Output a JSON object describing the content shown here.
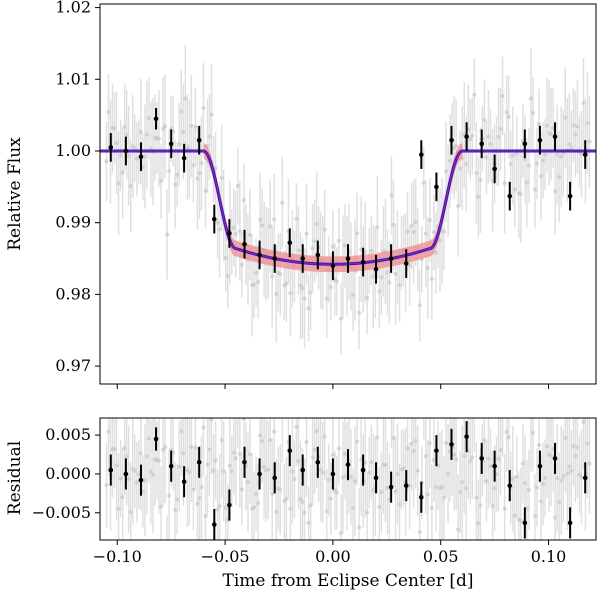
{
  "chart_data": [
    {
      "type": "scatter",
      "panel": "light-curve",
      "xlabel": "Time from Eclipse Center [d]",
      "ylabel": "Relative Flux",
      "xlim": [
        -0.108,
        0.122
      ],
      "ylim": [
        0.9675,
        1.0205
      ],
      "x_ticks": [
        -0.1,
        -0.05,
        0.0,
        0.05,
        0.1
      ],
      "x_tick_labels": [
        "−0.10",
        "−0.05",
        "0.00",
        "0.05",
        "0.10"
      ],
      "y_ticks": [
        0.97,
        0.98,
        0.99,
        1.0,
        1.01,
        1.02
      ],
      "y_tick_labels": [
        "0.97",
        "0.98",
        "0.99",
        "1.00",
        "1.01",
        "1.02"
      ],
      "grid": false,
      "colors": {
        "model": "#1a1aff",
        "model_center": "#cc2233",
        "band": "#f08a8a",
        "binned": "#000000",
        "raw": "#c8c8c8"
      },
      "model": {
        "baseline": 1.0,
        "depth": 0.0158,
        "t_first_contact": 0.06,
        "t_second_contact": 0.045,
        "limb_curvature": 0.0022,
        "band_halfwidth": 0.0011
      },
      "binned_points": {
        "x": [
          -0.103,
          -0.096,
          -0.089,
          -0.082,
          -0.075,
          -0.069,
          -0.062,
          -0.055,
          -0.048,
          -0.041,
          -0.034,
          -0.027,
          -0.02,
          -0.014,
          -0.007,
          0.0,
          0.007,
          0.014,
          0.02,
          0.027,
          0.034,
          0.041,
          0.048,
          0.055,
          0.062,
          0.069,
          0.075,
          0.082,
          0.089,
          0.096,
          0.103,
          0.11,
          0.117
        ],
        "y": [
          1.0005,
          1.0,
          0.9992,
          1.0045,
          1.001,
          0.999,
          1.0015,
          0.9905,
          0.9885,
          0.987,
          0.9855,
          0.985,
          0.9872,
          0.985,
          0.9855,
          0.984,
          0.985,
          0.9845,
          0.9835,
          0.985,
          0.9843,
          0.9995,
          0.995,
          1.0015,
          1.002,
          1.001,
          0.9975,
          0.9937,
          1.001,
          1.0015,
          1.002,
          0.9937,
          0.9995
        ],
        "yerr": [
          0.002,
          0.002,
          0.002,
          0.0015,
          0.002,
          0.002,
          0.002,
          0.002,
          0.002,
          0.002,
          0.002,
          0.002,
          0.002,
          0.002,
          0.002,
          0.002,
          0.002,
          0.002,
          0.002,
          0.002,
          0.002,
          0.002,
          0.002,
          0.002,
          0.002,
          0.002,
          0.002,
          0.002,
          0.002,
          0.002,
          0.002,
          0.002,
          0.002
        ]
      }
    },
    {
      "type": "scatter",
      "panel": "residuals",
      "xlabel": "Time from Eclipse Center [d]",
      "ylabel": "Residual",
      "xlim": [
        -0.108,
        0.122
      ],
      "ylim": [
        -0.0085,
        0.0072
      ],
      "x_ticks": [
        -0.1,
        -0.05,
        0.0,
        0.05,
        0.1
      ],
      "x_tick_labels": [
        "−0.10",
        "−0.05",
        "0.00",
        "0.05",
        "0.10"
      ],
      "y_ticks": [
        -0.005,
        0.0,
        0.005
      ],
      "y_tick_labels": [
        "−0.005",
        "0.000",
        "0.005"
      ],
      "grid": false,
      "binned_points": {
        "x": [
          -0.103,
          -0.096,
          -0.089,
          -0.082,
          -0.075,
          -0.069,
          -0.062,
          -0.055,
          -0.048,
          -0.041,
          -0.034,
          -0.027,
          -0.02,
          -0.014,
          -0.007,
          0.0,
          0.007,
          0.014,
          0.02,
          0.027,
          0.034,
          0.041,
          0.048,
          0.055,
          0.062,
          0.069,
          0.075,
          0.082,
          0.089,
          0.096,
          0.103,
          0.11,
          0.117
        ],
        "y": [
          0.0005,
          0.0,
          -0.0008,
          0.0045,
          0.001,
          -0.001,
          0.0015,
          -0.0065,
          -0.004,
          0.0015,
          0.0,
          -0.0005,
          0.003,
          0.0005,
          0.0015,
          0.0,
          0.0012,
          0.0005,
          -0.0005,
          -0.0017,
          -0.0015,
          -0.003,
          0.003,
          0.0038,
          0.0048,
          0.002,
          0.001,
          -0.0015,
          -0.0063,
          0.001,
          0.002,
          -0.0063,
          -0.0005
        ],
        "yerr": [
          0.002,
          0.002,
          0.002,
          0.0015,
          0.002,
          0.002,
          0.002,
          0.002,
          0.002,
          0.002,
          0.002,
          0.002,
          0.002,
          0.002,
          0.002,
          0.002,
          0.002,
          0.002,
          0.002,
          0.002,
          0.002,
          0.002,
          0.002,
          0.002,
          0.002,
          0.002,
          0.002,
          0.002,
          0.002,
          0.002,
          0.002,
          0.002,
          0.002
        ]
      }
    }
  ]
}
